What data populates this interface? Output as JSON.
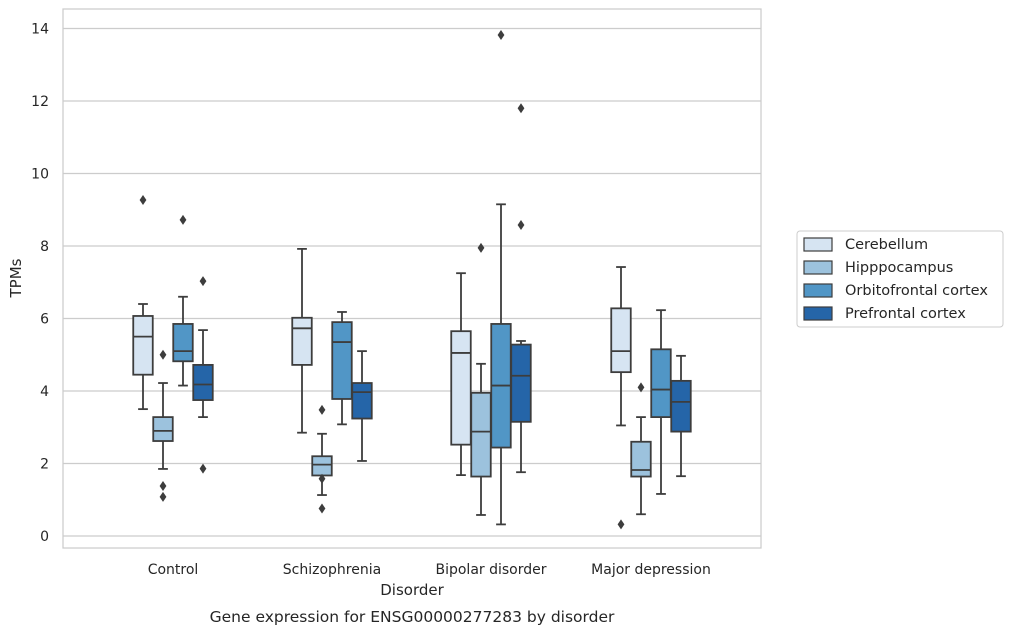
{
  "chart_data": {
    "type": "box",
    "title": "",
    "caption": "Gene expression for ENSG00000277283 by disorder",
    "xlabel": "Disorder",
    "ylabel": "TPMs",
    "ylim": [
      -0.3,
      14.5
    ],
    "yticks": [
      0,
      2,
      4,
      6,
      8,
      10,
      12,
      14
    ],
    "grid": "horizontal",
    "legend_position": "right",
    "categories": [
      "Control",
      "Schizophrenia",
      "Bipolar disorder",
      "Major depression"
    ],
    "series": [
      {
        "name": "Cerebellum",
        "color": "#d6e4f2",
        "boxes": [
          {
            "whislo": 3.5,
            "q1": 4.45,
            "med": 5.5,
            "q3": 6.07,
            "whishi": 6.4,
            "fliers": [
              9.27
            ]
          },
          {
            "whislo": 2.85,
            "q1": 4.72,
            "med": 5.73,
            "q3": 6.02,
            "whishi": 7.92,
            "fliers": []
          },
          {
            "whislo": 1.68,
            "q1": 2.52,
            "med": 5.05,
            "q3": 5.65,
            "whishi": 7.25,
            "fliers": []
          },
          {
            "whislo": 3.05,
            "q1": 4.52,
            "med": 5.1,
            "q3": 6.28,
            "whishi": 7.42,
            "fliers": [
              0.32
            ]
          }
        ]
      },
      {
        "name": "Hipppocampus",
        "color": "#9cc2dd",
        "boxes": [
          {
            "whislo": 1.85,
            "q1": 2.62,
            "med": 2.9,
            "q3": 3.28,
            "whishi": 4.22,
            "fliers": [
              5.0,
              1.38,
              1.08
            ]
          },
          {
            "whislo": 1.13,
            "q1": 1.67,
            "med": 1.97,
            "q3": 2.2,
            "whishi": 2.82,
            "fliers": [
              3.48,
              1.58,
              0.76
            ]
          },
          {
            "whislo": 0.58,
            "q1": 1.64,
            "med": 2.88,
            "q3": 3.95,
            "whishi": 4.75,
            "fliers": [
              7.95
            ]
          },
          {
            "whislo": 0.6,
            "q1": 1.64,
            "med": 1.82,
            "q3": 2.6,
            "whishi": 3.28,
            "fliers": [
              4.1
            ]
          }
        ]
      },
      {
        "name": "Orbitofrontal cortex",
        "color": "#5196c6",
        "boxes": [
          {
            "whislo": 4.15,
            "q1": 4.82,
            "med": 5.1,
            "q3": 5.85,
            "whishi": 6.6,
            "fliers": [
              8.72
            ]
          },
          {
            "whislo": 3.08,
            "q1": 3.78,
            "med": 5.35,
            "q3": 5.9,
            "whishi": 6.18,
            "fliers": []
          },
          {
            "whislo": 0.32,
            "q1": 2.44,
            "med": 4.15,
            "q3": 5.85,
            "whishi": 9.15,
            "fliers": [
              13.82
            ]
          },
          {
            "whislo": 1.16,
            "q1": 3.28,
            "med": 4.04,
            "q3": 5.15,
            "whishi": 6.23,
            "fliers": []
          }
        ]
      },
      {
        "name": "Prefrontal cortex",
        "color": "#2565a8",
        "boxes": [
          {
            "whislo": 3.28,
            "q1": 3.75,
            "med": 4.18,
            "q3": 4.72,
            "whishi": 5.68,
            "fliers": [
              7.03,
              1.86
            ]
          },
          {
            "whislo": 2.07,
            "q1": 3.24,
            "med": 3.97,
            "q3": 4.22,
            "whishi": 5.1,
            "fliers": []
          },
          {
            "whislo": 1.76,
            "q1": 3.15,
            "med": 4.42,
            "q3": 5.28,
            "whishi": 5.38,
            "fliers": [
              11.8,
              8.58
            ]
          },
          {
            "whislo": 1.65,
            "q1": 2.88,
            "med": 3.7,
            "q3": 4.28,
            "whishi": 4.97,
            "fliers": []
          }
        ]
      }
    ]
  }
}
